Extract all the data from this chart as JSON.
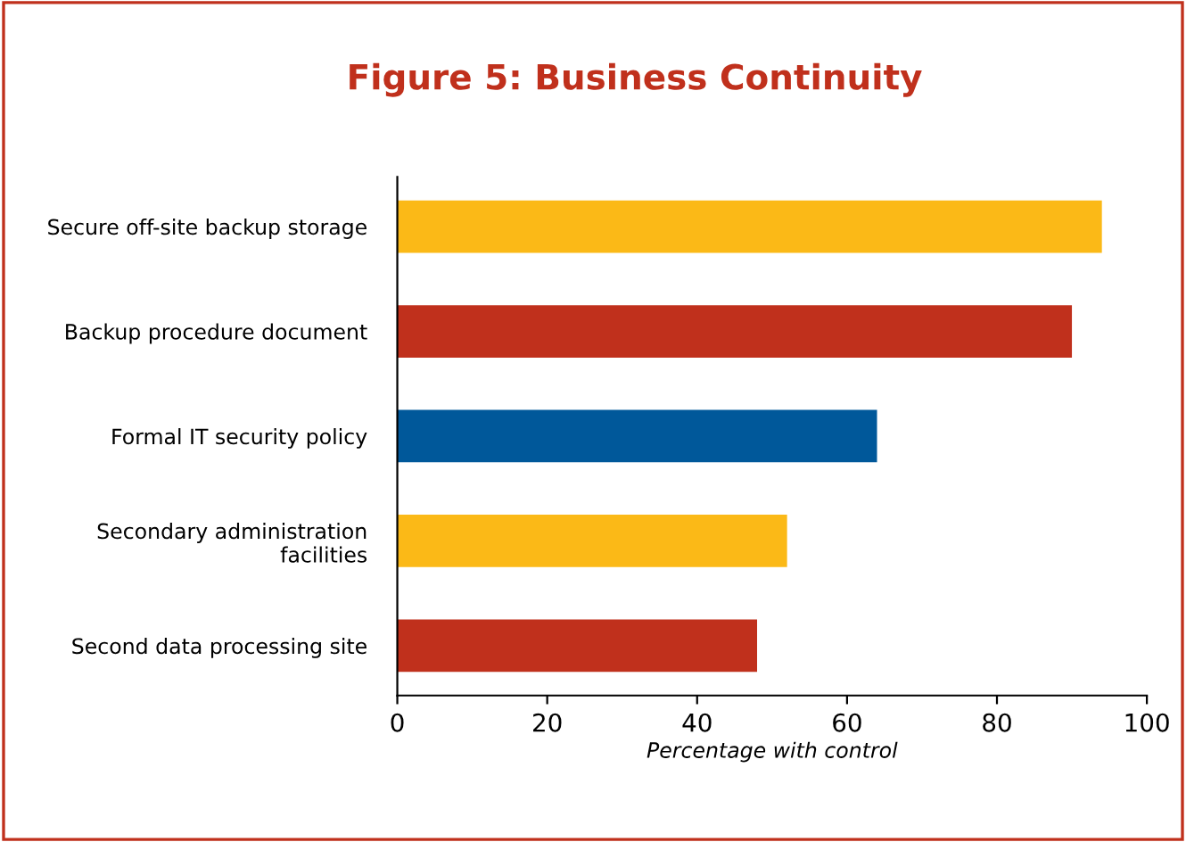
{
  "chart_data": {
    "type": "bar",
    "orientation": "horizontal",
    "title": "Figure 5: Business Continuity",
    "xlabel": "Percentage with control",
    "categories": [
      "Secure off-site backup storage",
      "Backup procedure document",
      "Formal IT security policy",
      "Secondary administration\nfacilities",
      "Second data processing site"
    ],
    "values": [
      94,
      90,
      64,
      52,
      48
    ],
    "colors": [
      "#fbb917",
      "#c0301c",
      "#00589a",
      "#fbb917",
      "#c0301c"
    ],
    "xlim": [
      0,
      100
    ],
    "xticks": [
      0,
      20,
      40,
      60,
      80,
      100
    ],
    "grid": false,
    "legend": false
  }
}
